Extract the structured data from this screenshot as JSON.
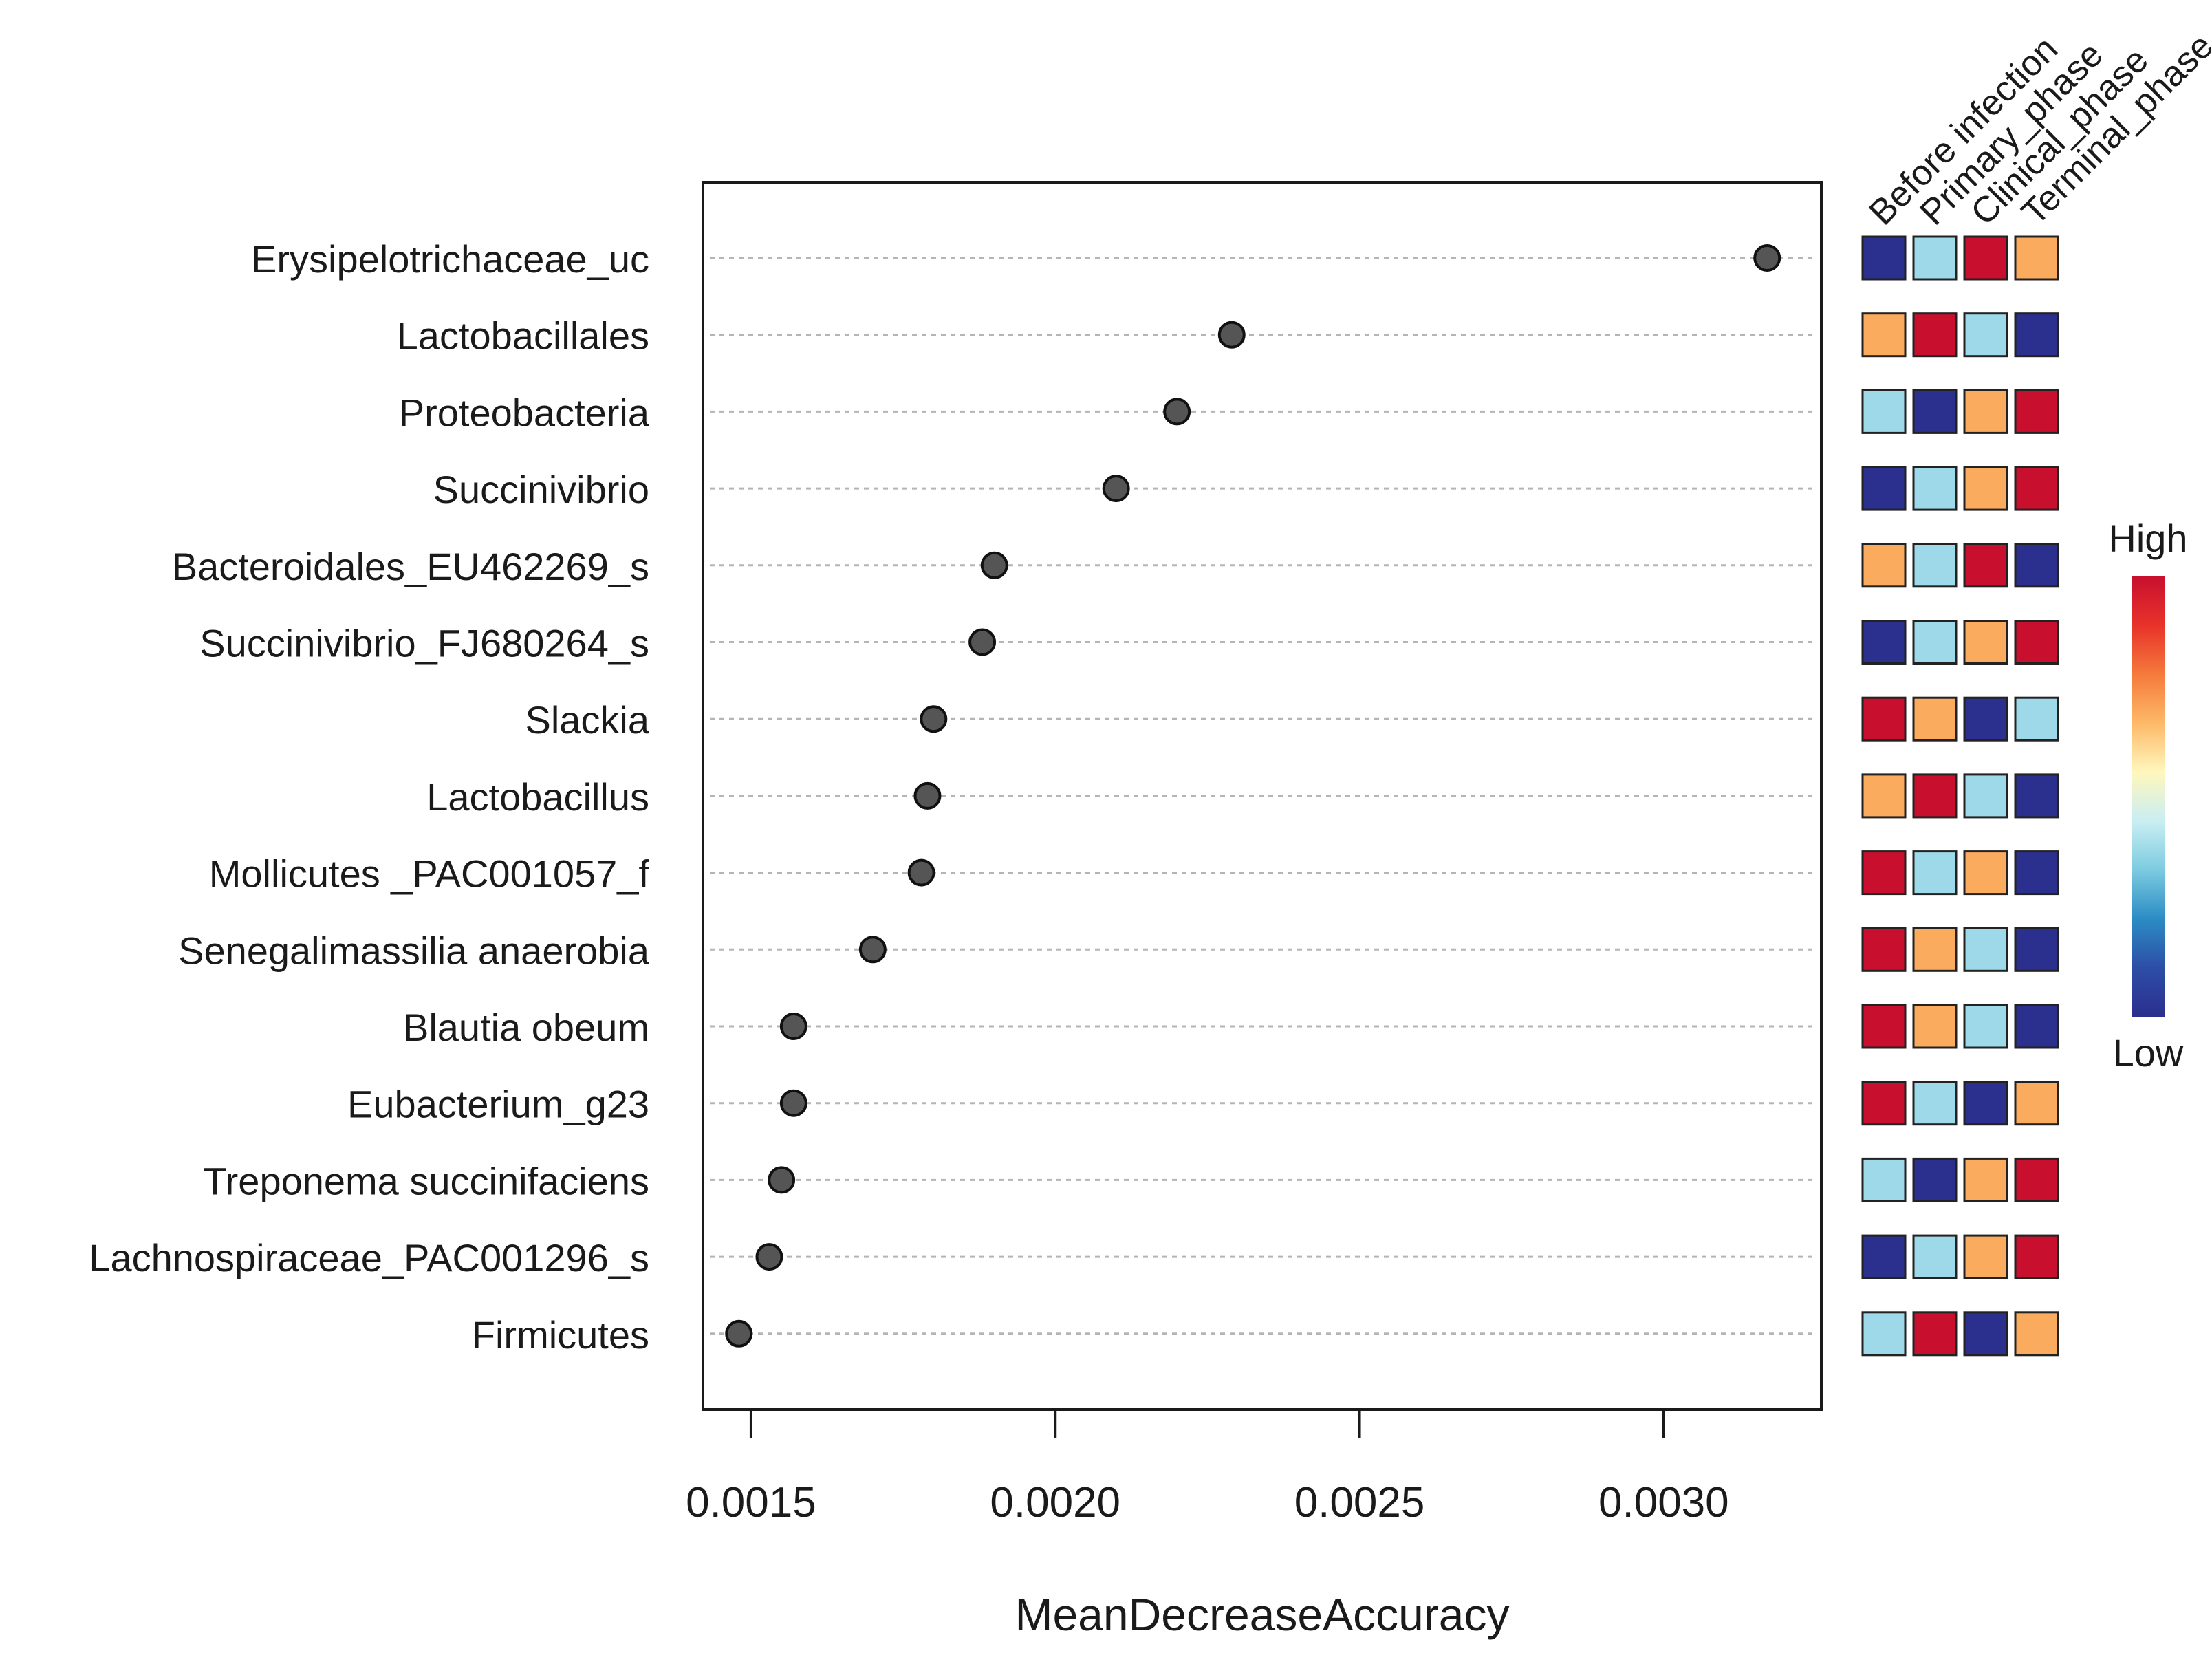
{
  "chart_data": {
    "type": "scatter",
    "subtype": "dot-plot-with-abundance-heatmap",
    "xlabel": "MeanDecreaseAccuracy",
    "ylabel": "",
    "xlim": [
      0.00143,
      0.00325
    ],
    "x_ticks": [
      {
        "value": 0.0015,
        "label": "0.0015"
      },
      {
        "value": 0.002,
        "label": "0.0020"
      },
      {
        "value": 0.0025,
        "label": "0.0025"
      },
      {
        "value": 0.003,
        "label": "0.0030"
      }
    ],
    "grid": "horizontal-dotted",
    "categories": [
      "Erysipelotrichaceae_uc",
      "Lactobacillales",
      "Proteobacteria",
      "Succinivibrio",
      "Bacteroidales_EU462269_s",
      "Succinivibrio_FJ680264_s",
      "Slackia",
      "Lactobacillus",
      "Mollicutes _PAC001057_f",
      "Senegalimassilia anaerobia",
      "Blautia obeum",
      "Eubacterium_g23",
      "Treponema succinifaciens",
      "Lachnospiraceae_PAC001296_s",
      "Firmicutes"
    ],
    "values": [
      0.00317,
      0.00229,
      0.0022,
      0.0021,
      0.0019,
      0.00188,
      0.0018,
      0.00179,
      0.00178,
      0.0017,
      0.00157,
      0.00157,
      0.00155,
      0.00153,
      0.00148
    ],
    "point_color": "#555555",
    "heatmap": {
      "columns": [
        "Before infection",
        "Primary_phase",
        "Clinical_phase",
        "Terminal_phase"
      ],
      "levels": {
        "low": "#2b2f8e",
        "mid_low": "#9dd9e8",
        "mid_high": "#fbab5e",
        "high": "#c8102e"
      },
      "rows": [
        [
          "low",
          "mid_low",
          "high",
          "mid_high"
        ],
        [
          "mid_high",
          "high",
          "mid_low",
          "low"
        ],
        [
          "mid_low",
          "low",
          "mid_high",
          "high"
        ],
        [
          "low",
          "mid_low",
          "mid_high",
          "high"
        ],
        [
          "mid_high",
          "mid_low",
          "high",
          "low"
        ],
        [
          "low",
          "mid_low",
          "mid_high",
          "high"
        ],
        [
          "high",
          "mid_high",
          "low",
          "mid_low"
        ],
        [
          "mid_high",
          "high",
          "mid_low",
          "low"
        ],
        [
          "high",
          "mid_low",
          "mid_high",
          "low"
        ],
        [
          "high",
          "mid_high",
          "mid_low",
          "low"
        ],
        [
          "high",
          "mid_high",
          "mid_low",
          "low"
        ],
        [
          "high",
          "mid_low",
          "low",
          "mid_high"
        ],
        [
          "mid_low",
          "low",
          "mid_high",
          "high"
        ],
        [
          "low",
          "mid_low",
          "mid_high",
          "high"
        ],
        [
          "mid_low",
          "high",
          "low",
          "mid_high"
        ]
      ]
    },
    "colorbar": {
      "high_label": "High",
      "low_label": "Low",
      "gradient": [
        "#c8102e",
        "#e8322a",
        "#f57a3c",
        "#fdb968",
        "#fff7bd",
        "#c9eef2",
        "#7ccbe0",
        "#2b8cc4",
        "#2d4ea6",
        "#2b2f8e"
      ]
    }
  }
}
